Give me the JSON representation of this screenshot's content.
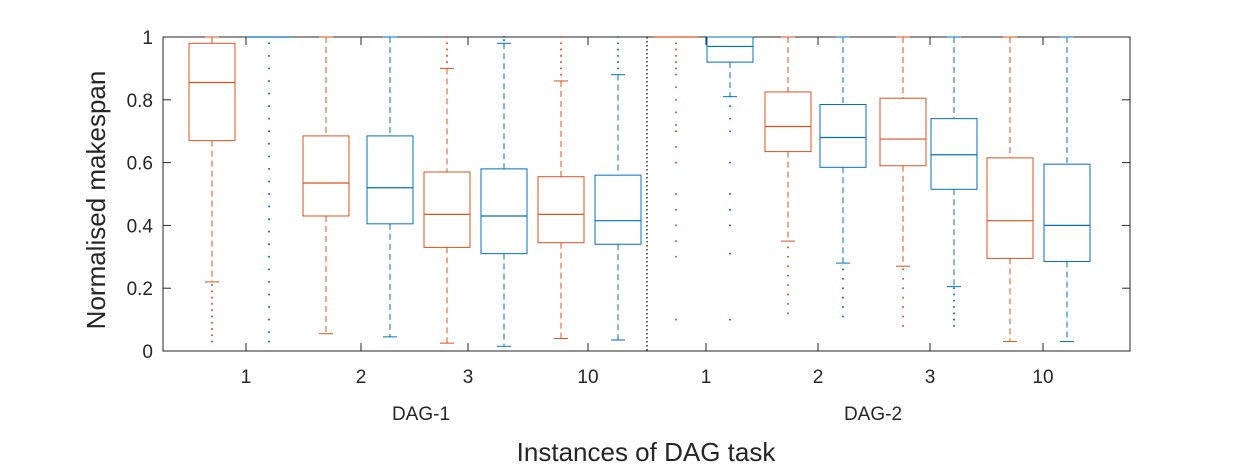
{
  "chart_data": {
    "type": "box",
    "xlabel": "Instances of DAG task",
    "ylabel": "Normalised makespan",
    "ylim": [
      0,
      1
    ],
    "yticks": [
      0,
      0.2,
      0.4,
      0.6,
      0.8,
      1
    ],
    "ytick_labels": [
      "0",
      "0.2",
      "0.4",
      "0.6",
      "0.8",
      "1"
    ],
    "grid": false,
    "colors": {
      "orange": "#D95319",
      "blue": "#0072BD",
      "axis": "#262626"
    },
    "groups": [
      {
        "label": "DAG-1",
        "categories": [
          "1",
          "2",
          "3",
          "10"
        ]
      },
      {
        "label": "DAG-2",
        "categories": [
          "1",
          "2",
          "3",
          "10"
        ]
      }
    ],
    "boxes": [
      {
        "group": 0,
        "category": "1",
        "color": "orange",
        "whisker_low": 0.22,
        "q1": 0.67,
        "median": 0.855,
        "q3": 0.98,
        "whisker_high": 1.0,
        "outliers": [
          0.03,
          0.05,
          0.07,
          0.09,
          0.11,
          0.13,
          0.15,
          0.17,
          0.19,
          0.21
        ]
      },
      {
        "group": 0,
        "category": "1",
        "color": "blue",
        "whisker_low": 1.0,
        "q1": 1.0,
        "median": 1.0,
        "q3": 1.0,
        "whisker_high": 1.0,
        "outliers": [
          0.03,
          0.06,
          0.1,
          0.14,
          0.18,
          0.22,
          0.26,
          0.3,
          0.34,
          0.38,
          0.42,
          0.46,
          0.5,
          0.54,
          0.58,
          0.62,
          0.66,
          0.7,
          0.74,
          0.78,
          0.82,
          0.86,
          0.9,
          0.94,
          0.98
        ]
      },
      {
        "group": 0,
        "category": "2",
        "color": "orange",
        "whisker_low": 0.055,
        "q1": 0.43,
        "median": 0.535,
        "q3": 0.685,
        "whisker_high": 1.0,
        "outliers": []
      },
      {
        "group": 0,
        "category": "2",
        "color": "blue",
        "whisker_low": 0.045,
        "q1": 0.405,
        "median": 0.52,
        "q3": 0.685,
        "whisker_high": 1.0,
        "outliers": []
      },
      {
        "group": 0,
        "category": "3",
        "color": "orange",
        "whisker_low": 0.025,
        "q1": 0.33,
        "median": 0.435,
        "q3": 0.57,
        "whisker_high": 0.9,
        "outliers": [
          0.92,
          0.94,
          0.96,
          0.98,
          1.0
        ]
      },
      {
        "group": 0,
        "category": "3",
        "color": "blue",
        "whisker_low": 0.015,
        "q1": 0.31,
        "median": 0.43,
        "q3": 0.58,
        "whisker_high": 0.98,
        "outliers": [
          0.99,
          1.0
        ]
      },
      {
        "group": 0,
        "category": "10",
        "color": "orange",
        "whisker_low": 0.04,
        "q1": 0.345,
        "median": 0.435,
        "q3": 0.555,
        "whisker_high": 0.86,
        "outliers": [
          0.88,
          0.9,
          0.92,
          0.94,
          0.96,
          0.98,
          1.0
        ]
      },
      {
        "group": 0,
        "category": "10",
        "color": "blue",
        "whisker_low": 0.035,
        "q1": 0.34,
        "median": 0.415,
        "q3": 0.56,
        "whisker_high": 0.88,
        "outliers": [
          0.9,
          0.92,
          0.94,
          0.96,
          0.98,
          1.0
        ]
      },
      {
        "group": 1,
        "category": "1",
        "color": "orange",
        "whisker_low": 1.0,
        "q1": 1.0,
        "median": 1.0,
        "q3": 1.0,
        "whisker_high": 1.0,
        "outliers": [
          0.1,
          0.3,
          0.35,
          0.4,
          0.45,
          0.5,
          0.6,
          0.65,
          0.7,
          0.72,
          0.76,
          0.8,
          0.84,
          0.88,
          0.9,
          0.92,
          0.94,
          0.96,
          0.98
        ]
      },
      {
        "group": 1,
        "category": "1",
        "color": "blue",
        "whisker_low": 0.81,
        "q1": 0.92,
        "median": 0.97,
        "q3": 1.0,
        "whisker_high": 1.0,
        "outliers": [
          0.1,
          0.31,
          0.4,
          0.45,
          0.5,
          0.6,
          0.7,
          0.74,
          0.78
        ]
      },
      {
        "group": 1,
        "category": "2",
        "color": "orange",
        "whisker_low": 0.35,
        "q1": 0.635,
        "median": 0.715,
        "q3": 0.825,
        "whisker_high": 1.0,
        "outliers": [
          0.12,
          0.15,
          0.18,
          0.21,
          0.24,
          0.27,
          0.3,
          0.33
        ]
      },
      {
        "group": 1,
        "category": "2",
        "color": "blue",
        "whisker_low": 0.28,
        "q1": 0.585,
        "median": 0.68,
        "q3": 0.785,
        "whisker_high": 1.0,
        "outliers": [
          0.11,
          0.14,
          0.17,
          0.2,
          0.23,
          0.26
        ]
      },
      {
        "group": 1,
        "category": "3",
        "color": "orange",
        "whisker_low": 0.27,
        "q1": 0.59,
        "median": 0.675,
        "q3": 0.805,
        "whisker_high": 1.0,
        "outliers": [
          0.08,
          0.11,
          0.14,
          0.17,
          0.2,
          0.23,
          0.26
        ]
      },
      {
        "group": 1,
        "category": "3",
        "color": "blue",
        "whisker_low": 0.205,
        "q1": 0.515,
        "median": 0.625,
        "q3": 0.74,
        "whisker_high": 1.0,
        "outliers": [
          0.08,
          0.1,
          0.12,
          0.14,
          0.16,
          0.18,
          0.2
        ]
      },
      {
        "group": 1,
        "category": "10",
        "color": "orange",
        "whisker_low": 0.03,
        "q1": 0.295,
        "median": 0.415,
        "q3": 0.615,
        "whisker_high": 1.0,
        "outliers": []
      },
      {
        "group": 1,
        "category": "10",
        "color": "blue",
        "whisker_low": 0.03,
        "q1": 0.285,
        "median": 0.4,
        "q3": 0.595,
        "whisker_high": 1.0,
        "outliers": []
      }
    ]
  }
}
